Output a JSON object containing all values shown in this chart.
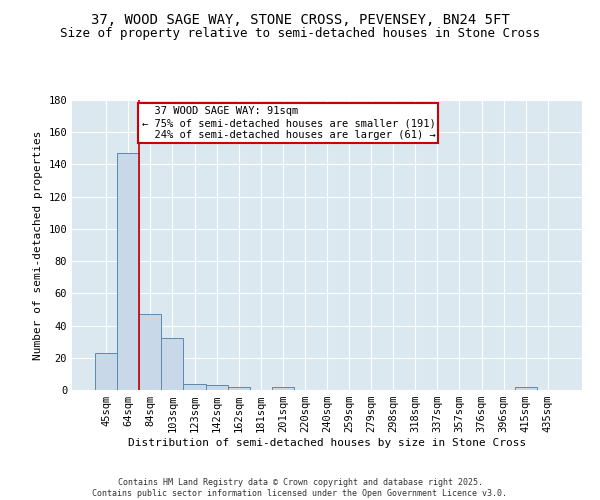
{
  "title": "37, WOOD SAGE WAY, STONE CROSS, PEVENSEY, BN24 5FT",
  "subtitle": "Size of property relative to semi-detached houses in Stone Cross",
  "xlabel": "Distribution of semi-detached houses by size in Stone Cross",
  "ylabel": "Number of semi-detached properties",
  "footer_line1": "Contains HM Land Registry data © Crown copyright and database right 2025.",
  "footer_line2": "Contains public sector information licensed under the Open Government Licence v3.0.",
  "categories": [
    "45sqm",
    "64sqm",
    "84sqm",
    "103sqm",
    "123sqm",
    "142sqm",
    "162sqm",
    "181sqm",
    "201sqm",
    "220sqm",
    "240sqm",
    "259sqm",
    "279sqm",
    "298sqm",
    "318sqm",
    "337sqm",
    "357sqm",
    "376sqm",
    "396sqm",
    "415sqm",
    "435sqm"
  ],
  "values": [
    23,
    147,
    47,
    32,
    4,
    3,
    2,
    0,
    2,
    0,
    0,
    0,
    0,
    0,
    0,
    0,
    0,
    0,
    0,
    2,
    0
  ],
  "bar_color": "#c8d8e8",
  "bar_edge_color": "#5a8ab0",
  "annotation_line1": "  37 WOOD SAGE WAY: 91sqm",
  "annotation_line2": "← 75% of semi-detached houses are smaller (191)",
  "annotation_line3": "  24% of semi-detached houses are larger (61) →",
  "vline_x": 1.5,
  "vline_color": "#cc0000",
  "annotation_box_color": "#ffffff",
  "annotation_box_edge": "#cc0000",
  "background_color": "#dce8f0",
  "ylim": [
    0,
    180
  ],
  "yticks": [
    0,
    20,
    40,
    60,
    80,
    100,
    120,
    140,
    160,
    180
  ],
  "title_fontsize": 10,
  "subtitle_fontsize": 9,
  "axis_label_fontsize": 8,
  "tick_fontsize": 7.5,
  "annotation_fontsize": 7.5
}
